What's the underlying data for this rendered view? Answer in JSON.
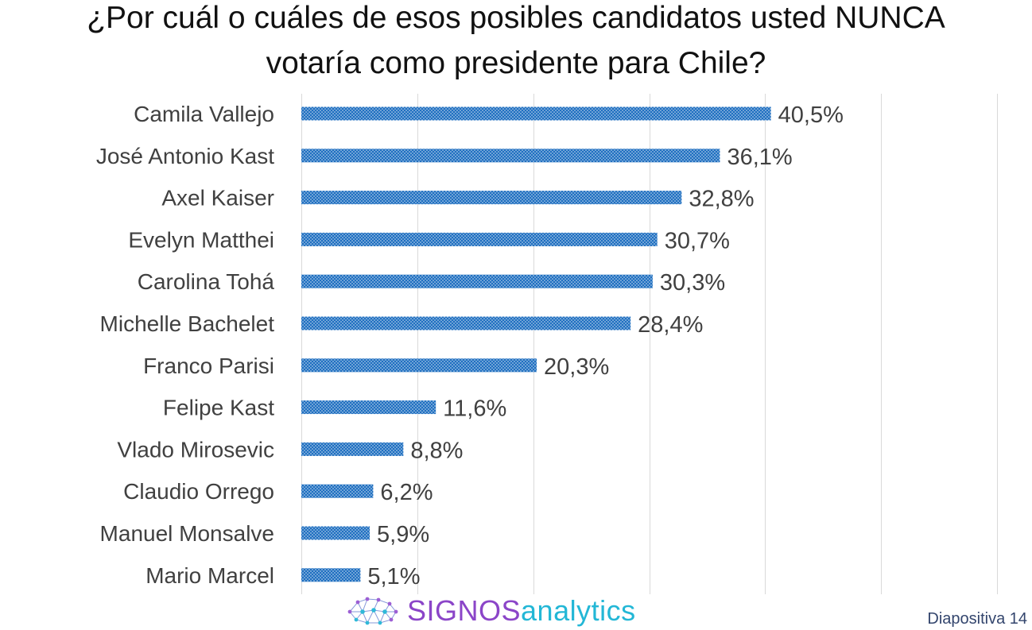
{
  "title_line1": "¿Por cuál o cuáles de esos posibles candidatos usted NUNCA",
  "title_line2": "votaría como presidente para Chile?",
  "logo": {
    "part1": "SIGNOS",
    "part2": "analytics",
    "icon": "network-brain-icon"
  },
  "slide_label": "Diapositiva 14",
  "colors": {
    "bar": "#1f6fc0",
    "bar_dots": "#ffffff",
    "grid": "#d9d9d9",
    "label_text": "#404040",
    "logo_purple": "#8b45c8",
    "logo_cyan": "#23b7d6"
  },
  "chart_data": {
    "type": "bar",
    "orientation": "horizontal",
    "title": "¿Por cuál o cuáles de esos posibles candidatos usted NUNCA votaría como presidente para Chile?",
    "categories": [
      "Camila Vallejo",
      "José Antonio Kast",
      "Axel Kaiser",
      "Evelyn Matthei",
      "Carolina Tohá",
      "Michelle Bachelet",
      "Franco Parisi",
      "Felipe Kast",
      "Vlado Mirosevic",
      "Claudio Orrego",
      "Manuel Monsalve",
      "Mario Marcel"
    ],
    "values": [
      40.5,
      36.1,
      32.8,
      30.7,
      30.3,
      28.4,
      20.3,
      11.6,
      8.8,
      6.2,
      5.9,
      5.1
    ],
    "data_labels": [
      "40,5%",
      "36,1%",
      "32,8%",
      "30,7%",
      "30,3%",
      "28,4%",
      "20,3%",
      "11,6%",
      "8,8%",
      "6,2%",
      "5,9%",
      "5,1%"
    ],
    "xlim": [
      0,
      60
    ],
    "grid": true,
    "legend": "none"
  }
}
